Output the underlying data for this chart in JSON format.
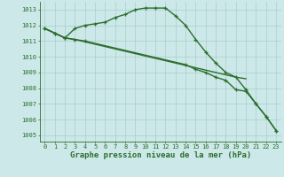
{
  "line1": {
    "x": [
      0,
      1,
      2,
      3,
      4,
      5,
      6,
      7,
      8,
      9,
      10,
      11,
      12,
      13,
      14,
      15,
      16,
      17,
      18,
      19,
      20,
      21,
      22,
      23
    ],
    "y": [
      1011.8,
      1011.5,
      1011.2,
      1011.8,
      1012.0,
      1012.1,
      1012.2,
      1012.5,
      1012.7,
      1013.0,
      1013.1,
      1013.1,
      1013.1,
      1012.6,
      1012.0,
      1011.1,
      1010.3,
      1009.6,
      1009.0,
      1008.7,
      1007.9,
      1007.0,
      1006.2,
      1005.3
    ],
    "has_markers": true
  },
  "line2": {
    "x": [
      0,
      1,
      2,
      3,
      4,
      5,
      6,
      7,
      8,
      9,
      10,
      11,
      12,
      13,
      14,
      15,
      16,
      17,
      18,
      19,
      20
    ],
    "y": [
      1011.8,
      1011.5,
      1011.2,
      1011.1,
      1010.95,
      1010.8,
      1010.65,
      1010.5,
      1010.35,
      1010.2,
      1010.05,
      1009.9,
      1009.75,
      1009.6,
      1009.45,
      1009.3,
      1009.15,
      1009.0,
      1008.85,
      1008.7,
      1008.6
    ],
    "has_markers": false
  },
  "line3": {
    "x": [
      0,
      1,
      2,
      3,
      4,
      14,
      15,
      16,
      17,
      18,
      19,
      20,
      21,
      22,
      23
    ],
    "y": [
      1011.8,
      1011.5,
      1011.2,
      1011.1,
      1011.0,
      1009.5,
      1009.2,
      1009.0,
      1008.7,
      1008.5,
      1007.9,
      1007.8,
      1007.0,
      1006.2,
      1005.3
    ],
    "has_markers": true
  },
  "color": "#2d6e2d",
  "bg_color": "#cce8e8",
  "grid_color": "#a0c8c8",
  "xlabel": "Graphe pression niveau de la mer (hPa)",
  "ylim": [
    1004.6,
    1013.5
  ],
  "xlim": [
    -0.5,
    23.5
  ],
  "yticks": [
    1005,
    1006,
    1007,
    1008,
    1009,
    1010,
    1011,
    1012,
    1013
  ],
  "xticks": [
    0,
    1,
    2,
    3,
    4,
    5,
    6,
    7,
    8,
    9,
    10,
    11,
    12,
    13,
    14,
    15,
    16,
    17,
    18,
    19,
    20,
    21,
    22,
    23
  ],
  "tick_fontsize": 5.0,
  "xlabel_fontsize": 6.5,
  "marker_size": 3.5,
  "line_width": 1.0
}
